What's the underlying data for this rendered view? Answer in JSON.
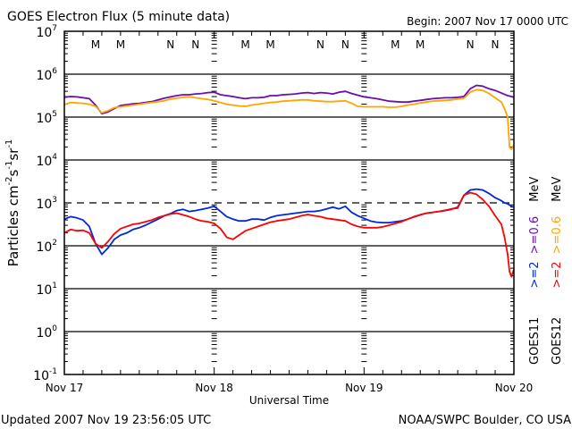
{
  "chart_data": {
    "type": "line",
    "title": "GOES Electron Flux (5 minute data)",
    "begin_label": "Begin: 2007 Nov 17 0000 UTC",
    "xlabel": "Universal Time",
    "ylabel": "Particles cm⁻²s⁻¹sr⁻¹",
    "ylabel_parts": {
      "base": "Particles cm",
      "sup1": "-2",
      "mid1": "s",
      "sup2": "-1",
      "mid2": "sr",
      "sup3": "-1"
    },
    "xlim_hours": [
      0,
      72
    ],
    "ylim_log10": [
      -1,
      7
    ],
    "x_tick_labels": [
      {
        "hour": 0,
        "label": "Nov 17"
      },
      {
        "hour": 24,
        "label": "Nov 18"
      },
      {
        "hour": 48,
        "label": "Nov 19"
      },
      {
        "hour": 72,
        "label": "Nov 20"
      }
    ],
    "y_tick_labels": [
      {
        "exp": 7,
        "base": "10",
        "sup": "7"
      },
      {
        "exp": 6,
        "base": "10",
        "sup": "6"
      },
      {
        "exp": 5,
        "base": "10",
        "sup": "5"
      },
      {
        "exp": 4,
        "base": "10",
        "sup": "4"
      },
      {
        "exp": 3,
        "base": "10",
        "sup": "3"
      },
      {
        "exp": 2,
        "base": "10",
        "sup": "2"
      },
      {
        "exp": 1,
        "base": "10",
        "sup": "1"
      },
      {
        "exp": 0,
        "base": "10",
        "sup": "0"
      },
      {
        "exp": -1,
        "base": "10",
        "sup": "-1"
      }
    ],
    "gridlines_log10": [
      6,
      5,
      4,
      2,
      1,
      0
    ],
    "dashed_threshold_log10": 3,
    "local_time_markers": [
      {
        "hour": 5,
        "label": "M",
        "satellite": "GOES12"
      },
      {
        "hour": 9,
        "label": "M",
        "satellite": "GOES11"
      },
      {
        "hour": 17,
        "label": "N",
        "satellite": "GOES12"
      },
      {
        "hour": 21,
        "label": "N",
        "satellite": "GOES11"
      },
      {
        "hour": 29,
        "label": "M",
        "satellite": "GOES12"
      },
      {
        "hour": 33,
        "label": "M",
        "satellite": "GOES11"
      },
      {
        "hour": 41,
        "label": "N",
        "satellite": "GOES12"
      },
      {
        "hour": 45,
        "label": "N",
        "satellite": "GOES11"
      },
      {
        "hour": 53,
        "label": "M",
        "satellite": "GOES12"
      },
      {
        "hour": 57,
        "label": "M",
        "satellite": "GOES11"
      },
      {
        "hour": 65,
        "label": "N",
        "satellite": "GOES12"
      },
      {
        "hour": 69,
        "label": "N",
        "satellite": "GOES11"
      }
    ],
    "legend": {
      "placement": "right",
      "columns": [
        {
          "satellite": "GOES11",
          "e2": ">=2",
          "e06": ">=0.6",
          "unit": "MeV"
        },
        {
          "satellite": "GOES12",
          "e2": ">=2",
          "e06": ">=0.6",
          "unit": "MeV"
        }
      ]
    },
    "x_hours": [
      0,
      1,
      2,
      3,
      4,
      5,
      6,
      7,
      8,
      9,
      10,
      11,
      12,
      13,
      14,
      15,
      16,
      17,
      18,
      19,
      20,
      21,
      22,
      23,
      24,
      25,
      26,
      27,
      28,
      29,
      30,
      31,
      32,
      33,
      34,
      35,
      36,
      37,
      38,
      39,
      40,
      41,
      42,
      43,
      44,
      45,
      46,
      47,
      48,
      49,
      50,
      51,
      52,
      53,
      54,
      55,
      56,
      57,
      58,
      59,
      60,
      61,
      62,
      63,
      64,
      65,
      66,
      67,
      68,
      69,
      70,
      70.5,
      71,
      71.3,
      71.6,
      72
    ],
    "series": [
      {
        "name": "GOES11 >=0.6 MeV",
        "color": "#6a0dad",
        "log10_values": [
          5.46,
          5.48,
          5.47,
          5.45,
          5.43,
          5.28,
          5.08,
          5.12,
          5.2,
          5.27,
          5.29,
          5.31,
          5.32,
          5.34,
          5.36,
          5.4,
          5.44,
          5.47,
          5.5,
          5.52,
          5.52,
          5.54,
          5.55,
          5.57,
          5.58,
          5.52,
          5.5,
          5.48,
          5.45,
          5.43,
          5.45,
          5.45,
          5.46,
          5.5,
          5.5,
          5.52,
          5.53,
          5.54,
          5.56,
          5.57,
          5.55,
          5.57,
          5.56,
          5.54,
          5.58,
          5.6,
          5.55,
          5.51,
          5.47,
          5.45,
          5.43,
          5.4,
          5.37,
          5.36,
          5.35,
          5.35,
          5.37,
          5.39,
          5.41,
          5.43,
          5.44,
          5.45,
          5.45,
          5.46,
          5.48,
          5.66,
          5.74,
          5.72,
          5.66,
          5.62,
          5.56,
          5.53,
          5.5,
          5.49,
          5.48,
          5.46
        ]
      },
      {
        "name": "GOES12 >=0.6 MeV",
        "color": "#ffa500",
        "log10_values": [
          5.29,
          5.34,
          5.33,
          5.32,
          5.3,
          5.25,
          5.1,
          5.15,
          5.22,
          5.24,
          5.26,
          5.28,
          5.3,
          5.32,
          5.34,
          5.36,
          5.38,
          5.42,
          5.44,
          5.46,
          5.47,
          5.45,
          5.43,
          5.41,
          5.38,
          5.34,
          5.3,
          5.28,
          5.26,
          5.25,
          5.28,
          5.3,
          5.32,
          5.34,
          5.35,
          5.37,
          5.38,
          5.39,
          5.4,
          5.4,
          5.38,
          5.37,
          5.36,
          5.36,
          5.37,
          5.38,
          5.32,
          5.25,
          5.24,
          5.24,
          5.24,
          5.24,
          5.23,
          5.23,
          5.25,
          5.28,
          5.3,
          5.33,
          5.35,
          5.37,
          5.38,
          5.39,
          5.4,
          5.42,
          5.44,
          5.58,
          5.64,
          5.62,
          5.55,
          5.45,
          5.35,
          5.2,
          5.0,
          4.3,
          4.25,
          4.35
        ]
      },
      {
        "name": "GOES11 >=2 MeV",
        "color": "#0028d8",
        "log10_values": [
          2.62,
          2.68,
          2.65,
          2.6,
          2.45,
          2.05,
          1.8,
          1.95,
          2.15,
          2.25,
          2.3,
          2.38,
          2.42,
          2.48,
          2.55,
          2.62,
          2.7,
          2.75,
          2.82,
          2.85,
          2.8,
          2.82,
          2.85,
          2.88,
          2.92,
          2.8,
          2.68,
          2.62,
          2.58,
          2.58,
          2.62,
          2.62,
          2.6,
          2.66,
          2.7,
          2.72,
          2.74,
          2.76,
          2.78,
          2.8,
          2.8,
          2.82,
          2.86,
          2.9,
          2.86,
          2.92,
          2.78,
          2.7,
          2.64,
          2.58,
          2.55,
          2.54,
          2.54,
          2.56,
          2.58,
          2.62,
          2.67,
          2.72,
          2.76,
          2.78,
          2.8,
          2.82,
          2.85,
          2.9,
          3.18,
          3.3,
          3.32,
          3.3,
          3.22,
          3.12,
          3.05,
          3.0,
          2.98,
          2.95,
          2.92,
          2.9
        ]
      },
      {
        "name": "GOES12 >=2 MeV",
        "color": "#ff0000",
        "log10_values": [
          2.3,
          2.38,
          2.35,
          2.36,
          2.3,
          2.05,
          1.95,
          2.1,
          2.28,
          2.4,
          2.45,
          2.5,
          2.52,
          2.56,
          2.6,
          2.66,
          2.7,
          2.74,
          2.76,
          2.72,
          2.68,
          2.62,
          2.58,
          2.56,
          2.52,
          2.4,
          2.2,
          2.15,
          2.25,
          2.35,
          2.4,
          2.45,
          2.5,
          2.55,
          2.58,
          2.6,
          2.62,
          2.66,
          2.7,
          2.73,
          2.7,
          2.68,
          2.64,
          2.62,
          2.6,
          2.58,
          2.5,
          2.45,
          2.42,
          2.42,
          2.42,
          2.44,
          2.48,
          2.52,
          2.56,
          2.62,
          2.68,
          2.72,
          2.76,
          2.78,
          2.8,
          2.83,
          2.86,
          2.88,
          3.18,
          3.24,
          3.2,
          3.08,
          2.92,
          2.7,
          2.5,
          2.2,
          1.8,
          1.4,
          1.28,
          1.45
        ]
      }
    ]
  },
  "footer": {
    "updated": "Updated 2007 Nov 19 23:56:05 UTC",
    "credit": "NOAA/SWPC Boulder, CO USA"
  }
}
